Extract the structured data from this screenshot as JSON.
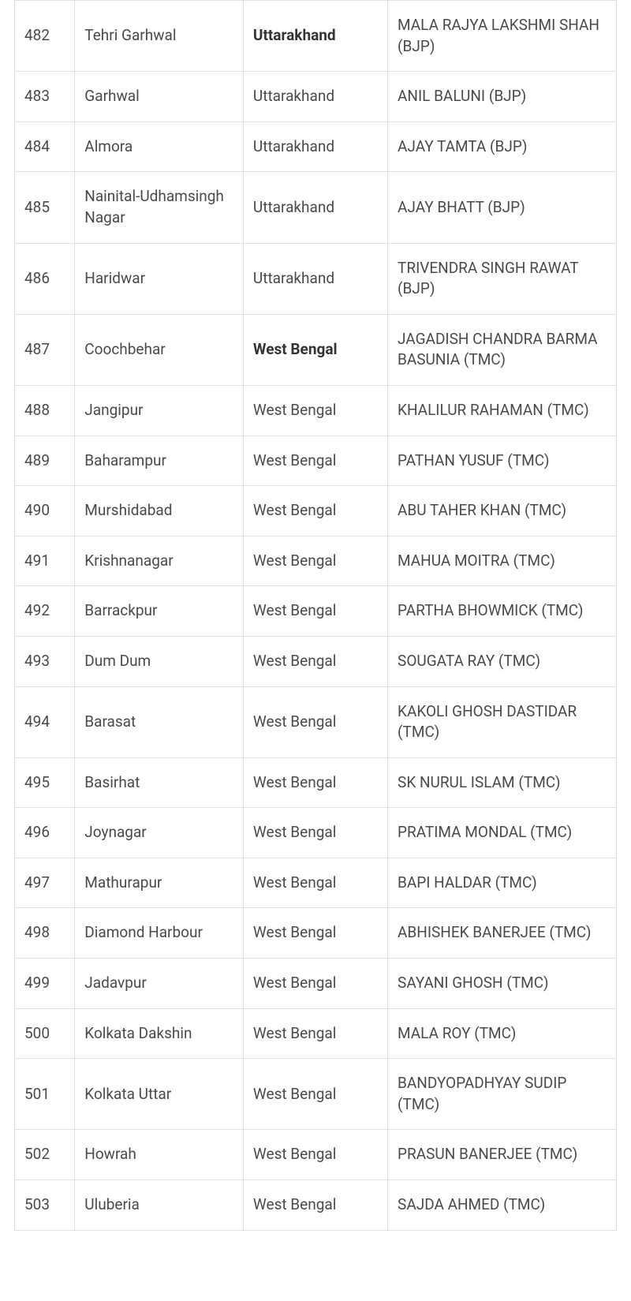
{
  "table": {
    "columns": [
      "serial",
      "constituency",
      "state",
      "winner"
    ],
    "column_widths": [
      "10%",
      "28%",
      "24%",
      "38%"
    ],
    "border_color": "#e0e0e0",
    "text_color": "#4a4a4a",
    "bold_color": "#333333",
    "font_size": 19,
    "background_color": "#ffffff",
    "rows": [
      {
        "serial": "482",
        "constituency": "Tehri Garhwal",
        "state": "Uttarakhand",
        "state_bold": true,
        "winner": "MALA RAJYA LAKSHMI SHAH (BJP)"
      },
      {
        "serial": "483",
        "constituency": "Garhwal",
        "state": "Uttarakhand",
        "state_bold": false,
        "winner": "ANIL BALUNI (BJP)"
      },
      {
        "serial": "484",
        "constituency": "Almora",
        "state": "Uttarakhand",
        "state_bold": false,
        "winner": "AJAY TAMTA (BJP)"
      },
      {
        "serial": "485",
        "constituency": "Nainital-Udhamsingh Nagar",
        "state": "Uttarakhand",
        "state_bold": false,
        "winner": "AJAY BHATT (BJP)"
      },
      {
        "serial": "486",
        "constituency": "Haridwar",
        "state": "Uttarakhand",
        "state_bold": false,
        "winner": "TRIVENDRA SINGH RAWAT (BJP)"
      },
      {
        "serial": "487",
        "constituency": "Coochbehar",
        "state": "West Bengal",
        "state_bold": true,
        "winner": "JAGADISH CHANDRA BARMA BASUNIA (TMC)"
      },
      {
        "serial": "488",
        "constituency": "Jangipur",
        "state": "West Bengal",
        "state_bold": false,
        "winner": "KHALILUR RAHAMAN (TMC)"
      },
      {
        "serial": "489",
        "constituency": "Baharampur",
        "state": "West Bengal",
        "state_bold": false,
        "winner": "PATHAN YUSUF (TMC)"
      },
      {
        "serial": "490",
        "constituency": "Murshidabad",
        "state": "West Bengal",
        "state_bold": false,
        "winner": "ABU TAHER KHAN (TMC)"
      },
      {
        "serial": "491",
        "constituency": "Krishnanagar",
        "state": "West Bengal",
        "state_bold": false,
        "winner": "MAHUA MOITRA (TMC)"
      },
      {
        "serial": "492",
        "constituency": "Barrackpur",
        "state": "West Bengal",
        "state_bold": false,
        "winner": "PARTHA BHOWMICK (TMC)"
      },
      {
        "serial": "493",
        "constituency": "Dum Dum",
        "state": "West Bengal",
        "state_bold": false,
        "winner": "SOUGATA RAY (TMC)"
      },
      {
        "serial": "494",
        "constituency": "Barasat",
        "state": "West Bengal",
        "state_bold": false,
        "winner": "KAKOLI GHOSH DASTIDAR (TMC)"
      },
      {
        "serial": "495",
        "constituency": "Basirhat",
        "state": "West Bengal",
        "state_bold": false,
        "winner": "SK NURUL ISLAM (TMC)"
      },
      {
        "serial": "496",
        "constituency": "Joynagar",
        "state": "West Bengal",
        "state_bold": false,
        "winner": "PRATIMA MONDAL (TMC)"
      },
      {
        "serial": "497",
        "constituency": "Mathurapur",
        "state": "West Bengal",
        "state_bold": false,
        "winner": "BAPI HALDAR (TMC)"
      },
      {
        "serial": "498",
        "constituency": "Diamond Harbour",
        "state": "West Bengal",
        "state_bold": false,
        "winner": "ABHISHEK BANERJEE (TMC)"
      },
      {
        "serial": "499",
        "constituency": "Jadavpur",
        "state": "West Bengal",
        "state_bold": false,
        "winner": "SAYANI GHOSH (TMC)"
      },
      {
        "serial": "500",
        "constituency": "Kolkata Dakshin",
        "state": "West Bengal",
        "state_bold": false,
        "winner": "MALA ROY (TMC)"
      },
      {
        "serial": "501",
        "constituency": "Kolkata Uttar",
        "state": "West Bengal",
        "state_bold": false,
        "winner": "BANDYOPADHYAY SUDIP (TMC)"
      },
      {
        "serial": "502",
        "constituency": "Howrah",
        "state": "West Bengal",
        "state_bold": false,
        "winner": "PRASUN BANERJEE (TMC)"
      },
      {
        "serial": "503",
        "constituency": "Uluberia",
        "state": "West Bengal",
        "state_bold": false,
        "winner": "SAJDA AHMED (TMC)"
      }
    ]
  }
}
